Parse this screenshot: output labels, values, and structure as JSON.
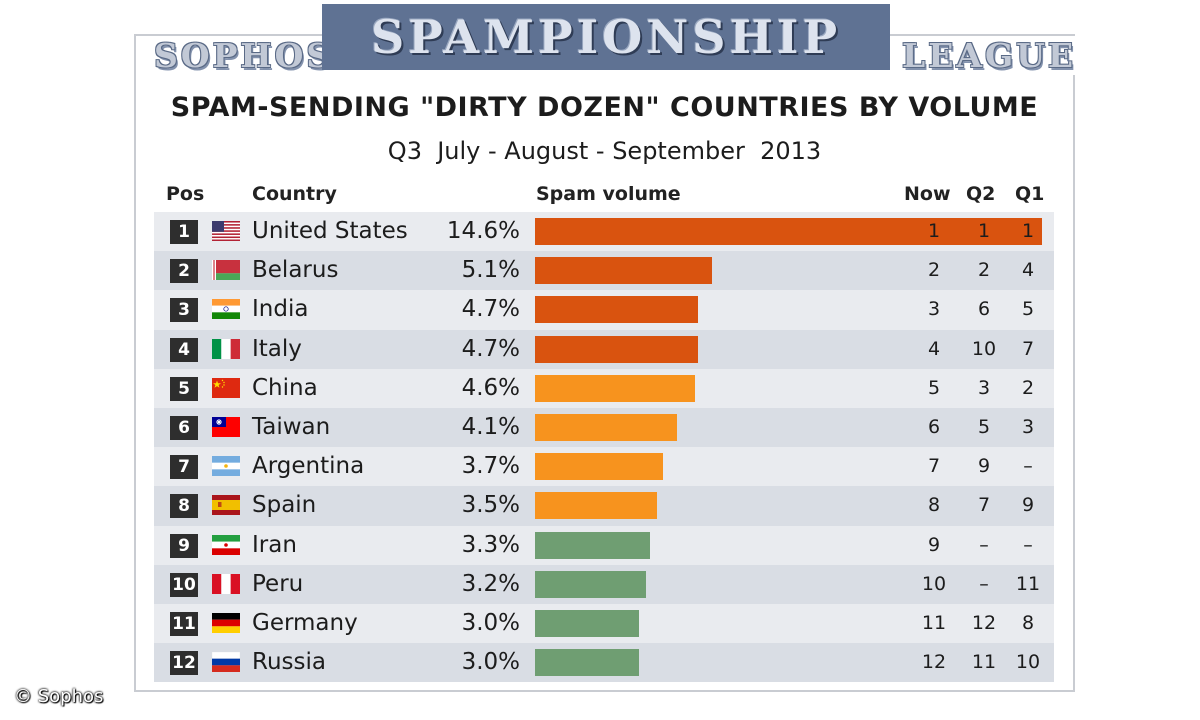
{
  "header": {
    "banner": "SPAMPIONSHIP",
    "left_word": "SOPHOS",
    "right_word": "LEAGUE",
    "title": "SPAM-SENDING \"DIRTY DOZEN\" COUNTRIES BY VOLUME",
    "subtitle": "Q3  July - August - September  2013"
  },
  "columns": {
    "pos": "Pos",
    "country": "Country",
    "spam": "Spam volume",
    "now": "Now",
    "q2": "Q2",
    "q1": "Q1"
  },
  "copyright": "© Sophos",
  "colors": {
    "top_tier": "#d9530f",
    "mid_tier": "#f7931e",
    "low_tier": "#6f9e72",
    "banner": "#5f7293"
  },
  "chart_data": {
    "type": "bar",
    "title": "SPAM-SENDING \"DIRTY DOZEN\" COUNTRIES BY VOLUME",
    "subtitle": "Q3  July - August - September  2013",
    "xlabel": "Spam volume",
    "orientation": "horizontal",
    "categories": [
      "United States",
      "Belarus",
      "India",
      "Italy",
      "China",
      "Taiwan",
      "Argentina",
      "Spain",
      "Iran",
      "Peru",
      "Germany",
      "Russia"
    ],
    "values": [
      14.6,
      5.1,
      4.7,
      4.7,
      4.6,
      4.1,
      3.7,
      3.5,
      3.3,
      3.2,
      3.0,
      3.0
    ],
    "xlim": [
      0,
      14.6
    ],
    "rows": [
      {
        "pos": "1",
        "flag": "us-flag",
        "country": "United States",
        "pct": "14.6%",
        "value": 14.6,
        "tier": "top_tier",
        "now": "1",
        "q2": "1",
        "q1": "1"
      },
      {
        "pos": "2",
        "flag": "belarus-flag",
        "country": "Belarus",
        "pct": "5.1%",
        "value": 5.1,
        "tier": "top_tier",
        "now": "2",
        "q2": "2",
        "q1": "4"
      },
      {
        "pos": "3",
        "flag": "india-flag",
        "country": "India",
        "pct": "4.7%",
        "value": 4.7,
        "tier": "top_tier",
        "now": "3",
        "q2": "6",
        "q1": "5"
      },
      {
        "pos": "4",
        "flag": "italy-flag",
        "country": "Italy",
        "pct": "4.7%",
        "value": 4.7,
        "tier": "top_tier",
        "now": "4",
        "q2": "10",
        "q1": "7"
      },
      {
        "pos": "5",
        "flag": "china-flag",
        "country": "China",
        "pct": "4.6%",
        "value": 4.6,
        "tier": "mid_tier",
        "now": "5",
        "q2": "3",
        "q1": "2"
      },
      {
        "pos": "6",
        "flag": "taiwan-flag",
        "country": "Taiwan",
        "pct": "4.1%",
        "value": 4.1,
        "tier": "mid_tier",
        "now": "6",
        "q2": "5",
        "q1": "3"
      },
      {
        "pos": "7",
        "flag": "argentina-flag",
        "country": "Argentina",
        "pct": "3.7%",
        "value": 3.7,
        "tier": "mid_tier",
        "now": "7",
        "q2": "9",
        "q1": "–"
      },
      {
        "pos": "8",
        "flag": "spain-flag",
        "country": "Spain",
        "pct": "3.5%",
        "value": 3.5,
        "tier": "mid_tier",
        "now": "8",
        "q2": "7",
        "q1": "9"
      },
      {
        "pos": "9",
        "flag": "iran-flag",
        "country": "Iran",
        "pct": "3.3%",
        "value": 3.3,
        "tier": "low_tier",
        "now": "9",
        "q2": "–",
        "q1": "–"
      },
      {
        "pos": "10",
        "flag": "peru-flag",
        "country": "Peru",
        "pct": "3.2%",
        "value": 3.2,
        "tier": "low_tier",
        "now": "10",
        "q2": "–",
        "q1": "11"
      },
      {
        "pos": "11",
        "flag": "germany-flag",
        "country": "Germany",
        "pct": "3.0%",
        "value": 3.0,
        "tier": "low_tier",
        "now": "11",
        "q2": "12",
        "q1": "8"
      },
      {
        "pos": "12",
        "flag": "russia-flag",
        "country": "Russia",
        "pct": "3.0%",
        "value": 3.0,
        "tier": "low_tier",
        "now": "12",
        "q2": "11",
        "q1": "10"
      }
    ]
  }
}
